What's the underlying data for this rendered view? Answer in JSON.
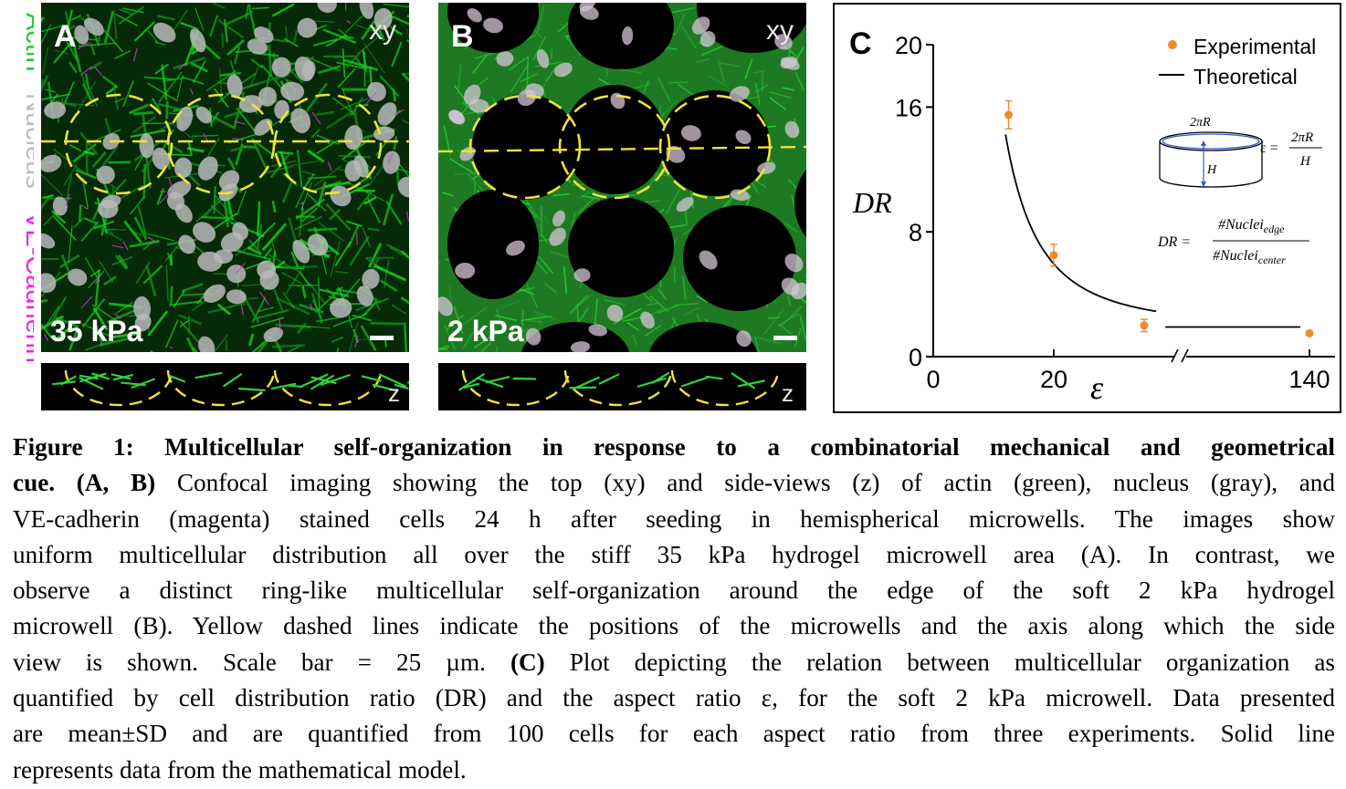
{
  "channel_legend": {
    "actin": "Actin",
    "nucleus": "Nucleus",
    "vecadherin": "VE-Cadherin",
    "actin_color": "#22cc33",
    "nucleus_color": "#bdbdbd",
    "vecadherin_color": "#ee22ee"
  },
  "panel_a": {
    "label": "A",
    "view": "xy",
    "stiffness": "35 kPa",
    "z_label": "z"
  },
  "panel_b": {
    "label": "B",
    "view": "xy",
    "stiffness": "2 kPa",
    "z_label": "z"
  },
  "panel_c": {
    "label": "C",
    "legend_experimental": "Experimental",
    "legend_theoretical": "Theoretical",
    "inset_circumference": "2πR",
    "inset_height": "H",
    "eq_eps_lhs": "ε =",
    "eq_eps_num": "2πR",
    "eq_eps_den": "H",
    "eq_dr_lhs": "DR =",
    "eq_dr_num": "#Nuclei",
    "eq_dr_num_sub": "edge",
    "eq_dr_den": "#Nuclei",
    "eq_dr_den_sub": "center"
  },
  "chart_data": {
    "type": "scatter",
    "xlabel": "ε",
    "ylabel": "DR",
    "ylim": [
      0,
      20
    ],
    "x_ticks": [
      "0",
      "20",
      "140"
    ],
    "y_ticks": [
      "0",
      "8",
      "16",
      "20"
    ],
    "x_axis_break": true,
    "series": [
      {
        "name": "Experimental",
        "color": "#f08a2c",
        "points": [
          {
            "x": 12.5,
            "y": 15.5,
            "sd": 0.9
          },
          {
            "x": 20,
            "y": 6.5,
            "sd": 0.7
          },
          {
            "x": 35,
            "y": 2.0,
            "sd": 0.4
          },
          {
            "x": 140,
            "y": 1.5,
            "sd": 0.1
          }
        ]
      },
      {
        "name": "Theoretical",
        "color": "#000000",
        "type": "line"
      }
    ]
  },
  "caption": {
    "fig_label": "Figure 1: Multicellular self-organization in response to a combinatorial mechanical and geometrical",
    "line1_bold": "cue. (A, B)",
    "line1_rest": "Confocal imaging showing the top (xy) and side-views (z) of actin (green), nucleus (gray), and",
    "line2": "VE-cadherin (magenta) stained cells 24 h after seeding in hemispherical microwells. The images show",
    "line3": "uniform multicellular distribution all over the stiff 35 kPa hydrogel microwell area (A). In contrast, we",
    "line4": "observe a distinct ring-like multicellular self-organization around the edge of the soft 2 kPa hydrogel",
    "line5": "microwell (B). Yellow dashed lines indicate the positions of the microwells and the axis along which the side",
    "line6_a": "view is shown. Scale bar = 25 µm.",
    "line6_bold": "(C)",
    "line6_b": "Plot depicting the relation between multicellular organization as",
    "line7": "quantified by cell distribution ratio (DR) and the aspect ratio ε, for the soft 2 kPa microwell. Data presented",
    "line8": "are mean±SD and are quantified from 100 cells for each aspect ratio from three experiments. Solid line",
    "line9": "represents data from the mathematical model."
  }
}
